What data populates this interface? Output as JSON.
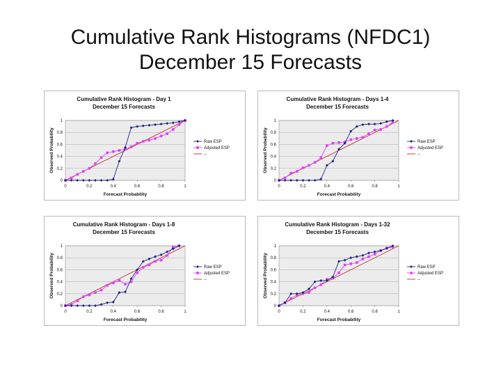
{
  "page": {
    "title_line1": "Cumulative Rank Histograms (NFDC1)",
    "title_line2": "December 15 Forecasts"
  },
  "colors": {
    "raw": "#1a237e",
    "adjusted": "#e040fb",
    "diagonal": "#c62828",
    "frame": "#b8b8b8"
  },
  "chart_data": [
    {
      "type": "line",
      "title": "Cumulative Rank Histogram - Day 1",
      "subtitle": "December 15 Forecasts",
      "xlabel": "Forecast Probability",
      "ylabel": "Observed Probability",
      "xlim": [
        0,
        1
      ],
      "ylim": [
        0,
        1
      ],
      "xticks": [
        "0",
        "0.2",
        "0.4",
        "0.6",
        "0.8",
        "1"
      ],
      "yticks": [
        "0",
        "0.2",
        "0.4",
        "0.6",
        "0.8",
        "1"
      ],
      "legend_position": "right",
      "series": [
        {
          "name": "Raw ESP",
          "x": [
            0,
            0.05,
            0.1,
            0.15,
            0.2,
            0.25,
            0.3,
            0.35,
            0.4,
            0.45,
            0.5,
            0.55,
            0.6,
            0.65,
            0.7,
            0.75,
            0.8,
            0.85,
            0.9,
            0.95,
            1.0
          ],
          "y": [
            0,
            0,
            0,
            0,
            0,
            0,
            0,
            0,
            0.02,
            0.32,
            0.55,
            0.88,
            0.9,
            0.91,
            0.92,
            0.93,
            0.94,
            0.95,
            0.96,
            0.98,
            1.0
          ]
        },
        {
          "name": "Adjusted ESP",
          "x": [
            0,
            0.05,
            0.1,
            0.15,
            0.2,
            0.25,
            0.3,
            0.35,
            0.4,
            0.45,
            0.5,
            0.55,
            0.6,
            0.65,
            0.7,
            0.75,
            0.8,
            0.85,
            0.9,
            0.95,
            1.0
          ],
          "y": [
            0,
            0.04,
            0.1,
            0.15,
            0.2,
            0.28,
            0.38,
            0.46,
            0.48,
            0.5,
            0.52,
            0.56,
            0.62,
            0.65,
            0.67,
            0.7,
            0.74,
            0.78,
            0.85,
            0.93,
            1.0
          ]
        },
        {
          "name": "",
          "x": [
            0,
            1
          ],
          "y": [
            0,
            1
          ]
        }
      ],
      "legend": [
        "Raw ESP",
        "Adjusted ESP",
        "--"
      ]
    },
    {
      "type": "line",
      "title": "Cumulative Rank Histogram - Days 1-4",
      "subtitle": "December 15 Forecasts",
      "xlabel": "Forecast Probability",
      "ylabel": "Observed Probability",
      "xlim": [
        0,
        1
      ],
      "ylim": [
        0,
        1
      ],
      "xticks": [
        "0",
        "0.2",
        "0.4",
        "0.6",
        "0.8",
        "1"
      ],
      "yticks": [
        "0",
        "0.2",
        "0.4",
        "0.6",
        "0.8",
        "1"
      ],
      "legend_position": "right",
      "series": [
        {
          "name": "Raw ESP",
          "x": [
            0,
            0.05,
            0.1,
            0.15,
            0.2,
            0.25,
            0.3,
            0.35,
            0.4,
            0.45,
            0.5,
            0.55,
            0.6,
            0.65,
            0.7,
            0.75,
            0.8,
            0.85,
            0.9,
            0.95
          ],
          "y": [
            0,
            0,
            0,
            0,
            0,
            0,
            0,
            0.02,
            0.25,
            0.32,
            0.52,
            0.62,
            0.82,
            0.9,
            0.93,
            0.94,
            0.94,
            0.95,
            0.98,
            1.0
          ]
        },
        {
          "name": "Adjusted ESP",
          "x": [
            0,
            0.05,
            0.1,
            0.15,
            0.2,
            0.25,
            0.3,
            0.35,
            0.4,
            0.45,
            0.5,
            0.55,
            0.6,
            0.65,
            0.7,
            0.75,
            0.8,
            0.85,
            0.9,
            0.95
          ],
          "y": [
            0,
            0.04,
            0.12,
            0.15,
            0.21,
            0.25,
            0.3,
            0.38,
            0.58,
            0.62,
            0.63,
            0.64,
            0.68,
            0.7,
            0.72,
            0.78,
            0.84,
            0.85,
            0.9,
            0.97
          ]
        },
        {
          "name": "",
          "x": [
            0,
            1
          ],
          "y": [
            0,
            1
          ]
        }
      ],
      "legend": [
        "Raw ESP",
        "Adjusted ESP",
        "--"
      ]
    },
    {
      "type": "line",
      "title": "Cumulative Rank Histogram - Days 1-8",
      "subtitle": "December 15 Forecasts",
      "xlabel": "Forecast Probability",
      "ylabel": "Observed Probability",
      "xlim": [
        0,
        1
      ],
      "ylim": [
        0,
        1
      ],
      "xticks": [
        "0",
        "0.2",
        "0.4",
        "0.6",
        "0.8",
        "1"
      ],
      "yticks": [
        "0",
        "0.2",
        "0.4",
        "0.6",
        "0.8",
        "1"
      ],
      "legend_position": "right",
      "series": [
        {
          "name": "Raw ESP",
          "x": [
            0,
            0.05,
            0.1,
            0.15,
            0.2,
            0.25,
            0.3,
            0.35,
            0.4,
            0.45,
            0.5,
            0.55,
            0.6,
            0.65,
            0.7,
            0.75,
            0.8,
            0.85,
            0.9,
            0.95
          ],
          "y": [
            0,
            0,
            0,
            0,
            0,
            0,
            0.02,
            0.05,
            0.06,
            0.22,
            0.23,
            0.45,
            0.6,
            0.74,
            0.78,
            0.82,
            0.85,
            0.9,
            0.95,
            1.0
          ]
        },
        {
          "name": "Adjusted ESP",
          "x": [
            0,
            0.05,
            0.1,
            0.15,
            0.2,
            0.25,
            0.3,
            0.35,
            0.4,
            0.45,
            0.5,
            0.55,
            0.6,
            0.65,
            0.7,
            0.75,
            0.8,
            0.85,
            0.9,
            0.95
          ],
          "y": [
            0,
            0.02,
            0.08,
            0.15,
            0.18,
            0.22,
            0.26,
            0.34,
            0.38,
            0.42,
            0.36,
            0.4,
            0.55,
            0.64,
            0.68,
            0.74,
            0.76,
            0.84,
            0.98,
            1.0
          ]
        },
        {
          "name": "",
          "x": [
            0,
            1
          ],
          "y": [
            0,
            1
          ]
        }
      ],
      "legend": [
        "Raw ESP",
        "Adjusted ESP",
        "--"
      ]
    },
    {
      "type": "line",
      "title": "Cumulative Rank Histogram - Days 1-32",
      "subtitle": "December 15 Forecasts",
      "xlabel": "Forecast Probability",
      "ylabel": "Observed Probability",
      "xlim": [
        0,
        1
      ],
      "ylim": [
        0,
        1
      ],
      "xticks": [
        "0",
        "0.2",
        "0.4",
        "0.6",
        "0.8",
        "1"
      ],
      "yticks": [
        "0",
        "0.2",
        "0.4",
        "0.6",
        "0.8",
        "1"
      ],
      "legend_position": "right",
      "series": [
        {
          "name": "Raw ESP",
          "x": [
            0,
            0.05,
            0.1,
            0.15,
            0.2,
            0.25,
            0.3,
            0.35,
            0.4,
            0.45,
            0.5,
            0.55,
            0.6,
            0.65,
            0.7,
            0.75,
            0.8,
            0.85,
            0.9,
            0.95
          ],
          "y": [
            0,
            0.05,
            0.2,
            0.2,
            0.22,
            0.28,
            0.4,
            0.42,
            0.42,
            0.48,
            0.74,
            0.76,
            0.8,
            0.82,
            0.84,
            0.88,
            0.9,
            0.92,
            0.96,
            1.0
          ]
        },
        {
          "name": "Adjusted ESP",
          "x": [
            0,
            0.05,
            0.1,
            0.15,
            0.2,
            0.25,
            0.3,
            0.35,
            0.4,
            0.45,
            0.5,
            0.55,
            0.6,
            0.65,
            0.7,
            0.75,
            0.8,
            0.85,
            0.9,
            0.95
          ],
          "y": [
            0,
            0.05,
            0.12,
            0.18,
            0.2,
            0.22,
            0.3,
            0.35,
            0.44,
            0.46,
            0.55,
            0.68,
            0.7,
            0.72,
            0.78,
            0.82,
            0.86,
            0.92,
            0.96,
            0.98
          ]
        },
        {
          "name": "",
          "x": [
            0,
            1
          ],
          "y": [
            0,
            1
          ]
        }
      ],
      "legend": [
        "Raw ESP",
        "Adjusted ESP",
        "--"
      ]
    }
  ]
}
